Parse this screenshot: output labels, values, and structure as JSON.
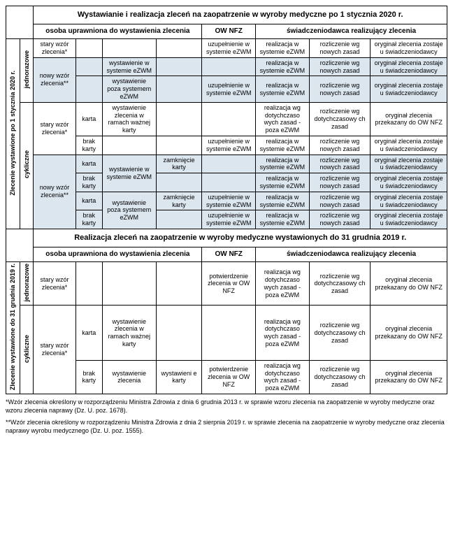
{
  "h1": "Wystawianie i realizacja zleceń na zaopatrzenie w wyroby medyczne po 1 stycznia 2020 r.",
  "h2": "Realizacja zleceń na zaopatrzenie w wyroby medyczne wystawionych do 31 grudnia 2019 r.",
  "sub_osoba": "osoba uprawniona do wystawienia zlecenia",
  "sub_ow": "OW NFZ",
  "sub_swiad": "świadczeniodawca realizujący zlecenia",
  "vleft1": "Zlecenie wystawione po 1 stycznia 2020 r.",
  "vleft2": "Zlecenie wystawione do 31 grudnia 2019 r.",
  "v_jedno": "jednorazowe",
  "v_cykl": "cykliczne",
  "stary": "stary wzór zlecenia*",
  "nowy": "nowy wzór zlecenia**",
  "karta": "karta",
  "brak": "brak karty",
  "wyst_ezwm": "wystawienie w systemie eZWM",
  "wyst_poza": "wystawienie poza systemem eZWM",
  "wyst_ramach": "wystawienie zlecenia w ramach ważnej karty",
  "wyst_zlec": "wystawienie zlecenia",
  "zamk": "zamknięcie karty",
  "zamk2": "zamknięcie karty",
  "wyste_karty": "wystawieni e karty",
  "uzup": "uzupełnienie w systemie eZWM",
  "potw": "potwierdzenie zlecenia w OW NFZ",
  "real_ezwm": "realizacja w systemie eZWM",
  "real_poza": "realizacja wg dotychczaso wych zasad - poza eZWM",
  "rozl_now": "rozliczenie wg nowych zasad",
  "rozl_dot": "rozliczenie wg dotychczasowy ch zasad",
  "rozl_dot2": "rozliczenie wg dotychczasowy ch  zasad",
  "oryg_sw": "oryginał zlecenia zostaje u świadczeniodawcy",
  "oryg_ow": "oryginał zlecenia przekazany do OW NFZ",
  "fn1": "*Wzór zlecenia określony w rozporządzeniu Ministra Zdrowia z dnia 6 grudnia 2013 r. w sprawie wzoru zlecenia na zaopatrzenie w wyroby medyczne oraz wzoru zlecenia naprawy (Dz. U. poz. 1678).",
  "fn2": "**Wzór zlecenia określony w rozporządzeniu Ministra Zdrowia z dnia 2 sierpnia 2019 r. w sprawie zlecenia na zaopatrzenie w wyroby medyczne oraz zlecenia naprawy wyrobu medycznego (Dz. U. poz. 1555)."
}
